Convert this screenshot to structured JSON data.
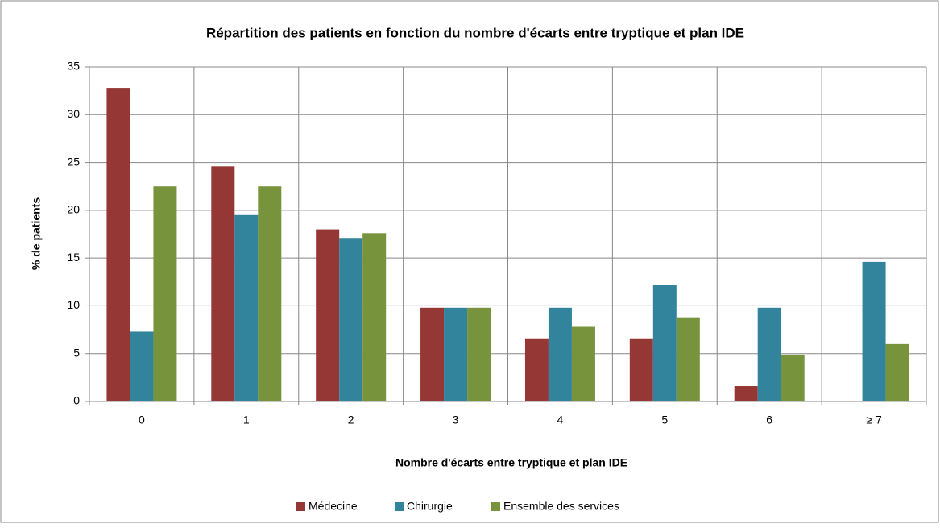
{
  "chart_data": {
    "type": "bar",
    "title": "Répartition des patients en fonction du nombre d'écarts entre tryptique et plan IDE",
    "x_label": "Nombre d'écarts entre tryptique et plan IDE",
    "y_label": "% de patients",
    "categories": [
      "0",
      "1",
      "2",
      "3",
      "4",
      "5",
      "6",
      "≥ 7"
    ],
    "series": [
      {
        "name": "Médecine",
        "color": "#953735",
        "values": [
          32.8,
          24.6,
          18.0,
          9.8,
          6.6,
          6.6,
          1.6,
          0
        ]
      },
      {
        "name": "Chirurgie",
        "color": "#31849b",
        "values": [
          7.3,
          19.5,
          17.1,
          9.8,
          9.8,
          12.2,
          9.8,
          14.6
        ]
      },
      {
        "name": "Ensemble des services",
        "color": "#77933c",
        "values": [
          22.5,
          22.5,
          17.6,
          9.8,
          7.8,
          8.8,
          4.9,
          6.0
        ]
      }
    ],
    "ylim": [
      0,
      35
    ],
    "yticks": [
      0,
      5,
      10,
      15,
      20,
      25,
      30,
      35
    ],
    "grid": true,
    "legend": "bottom"
  }
}
